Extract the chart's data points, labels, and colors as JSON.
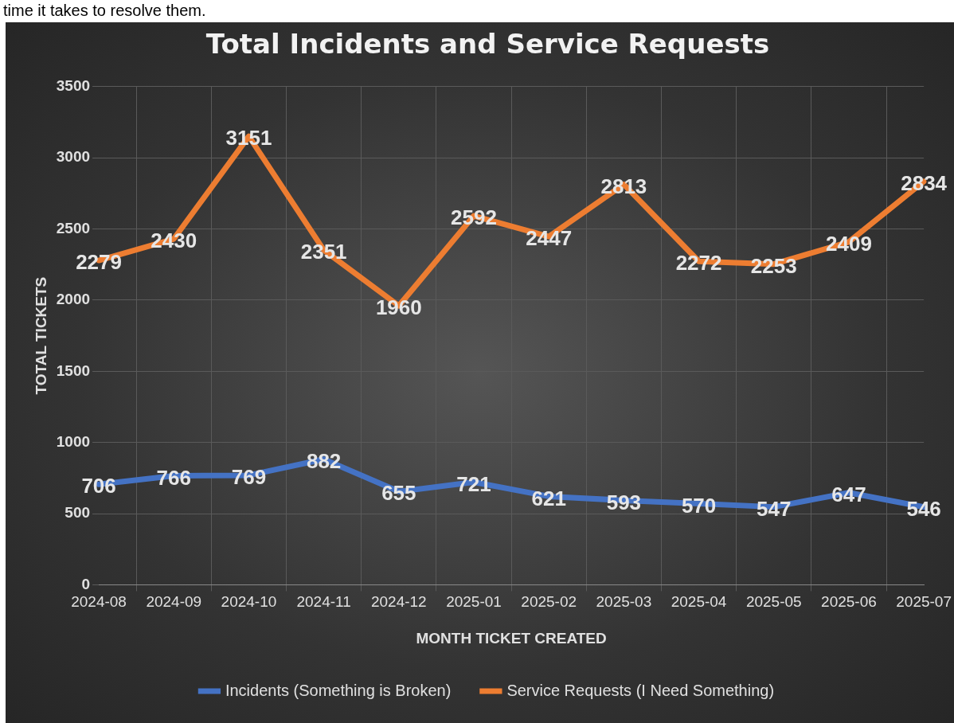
{
  "chart_data": {
    "type": "line",
    "title": "Total Incidents and Service Requests",
    "xlabel": "MONTH TICKET CREATED",
    "ylabel": "TOTAL TICKETS",
    "categories": [
      "2024-08",
      "2024-09",
      "2024-10",
      "2024-11",
      "2024-12",
      "2025-01",
      "2025-02",
      "2025-03",
      "2025-04",
      "2025-05",
      "2025-06",
      "2025-07"
    ],
    "series": [
      {
        "name": "Incidents (Something is Broken)",
        "color": "#4472c4",
        "values": [
          706,
          766,
          769,
          882,
          655,
          721,
          621,
          593,
          570,
          547,
          647,
          546
        ]
      },
      {
        "name": "Service Requests (I Need Something)",
        "color": "#ed7d31",
        "values": [
          2279,
          2430,
          3151,
          2351,
          1960,
          2592,
          2447,
          2813,
          2272,
          2253,
          2409,
          2834
        ]
      }
    ],
    "ylim": [
      0,
      3500
    ],
    "yticks": [
      0,
      500,
      1000,
      1500,
      2000,
      2500,
      3000,
      3500
    ],
    "grid": true,
    "legend": "bottom",
    "data_labels": true,
    "annotations": [
      "time it takes to resolve them."
    ]
  }
}
